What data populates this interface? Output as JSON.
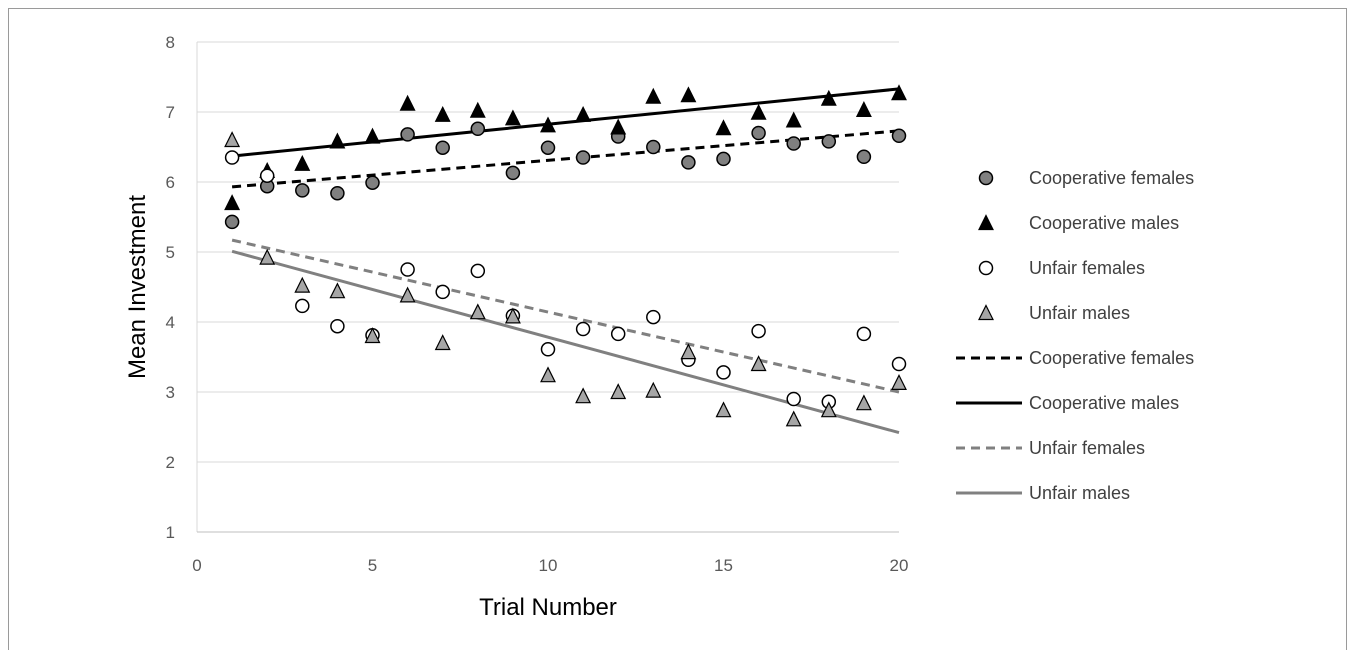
{
  "chart_data": {
    "type": "scatter",
    "title": "",
    "xlabel": "Trial Number",
    "ylabel": "Mean Investment",
    "xlim": [
      0,
      20
    ],
    "ylim": [
      1,
      8
    ],
    "x_ticks": [
      0,
      5,
      10,
      15,
      20
    ],
    "y_ticks": [
      1,
      2,
      3,
      4,
      5,
      6,
      7,
      8
    ],
    "grid": "horizontal",
    "legend_position": "right",
    "x": [
      1,
      2,
      3,
      4,
      5,
      6,
      7,
      8,
      9,
      10,
      11,
      12,
      13,
      14,
      15,
      16,
      17,
      18,
      19,
      20
    ],
    "series": [
      {
        "name": "Cooperative females",
        "marker": "circle",
        "fill": "#808080",
        "values": [
          5.43,
          5.94,
          5.88,
          5.84,
          5.99,
          6.68,
          6.49,
          6.76,
          6.13,
          6.49,
          6.35,
          6.65,
          6.5,
          6.28,
          6.33,
          6.7,
          6.55,
          6.58,
          6.36,
          6.66
        ]
      },
      {
        "name": "Cooperative males",
        "marker": "triangle",
        "fill": "#000000",
        "values": [
          5.7,
          6.16,
          6.26,
          6.58,
          6.65,
          7.12,
          6.96,
          7.02,
          6.91,
          6.81,
          6.96,
          6.78,
          7.22,
          7.24,
          6.77,
          6.99,
          6.88,
          7.19,
          7.03,
          7.27
        ]
      },
      {
        "name": "Unfair females",
        "marker": "circle",
        "fill": "#ffffff",
        "values": [
          6.35,
          6.09,
          4.23,
          3.94,
          3.81,
          4.75,
          4.43,
          4.73,
          4.09,
          3.61,
          3.9,
          3.83,
          4.07,
          3.46,
          3.28,
          3.87,
          2.9,
          2.86,
          3.83,
          3.4
        ]
      },
      {
        "name": "Unfair males",
        "marker": "triangle",
        "fill": "#a6a6a6",
        "values": [
          6.6,
          4.92,
          4.52,
          4.44,
          3.8,
          4.38,
          3.7,
          4.14,
          4.08,
          3.24,
          2.94,
          3.0,
          3.02,
          3.57,
          2.74,
          3.4,
          2.61,
          2.74,
          2.84,
          3.13
        ]
      }
    ],
    "trendlines": [
      {
        "name": "Cooperative females",
        "style": "dashed",
        "color": "#000000",
        "x": [
          1,
          20
        ],
        "y": [
          5.93,
          6.73
        ]
      },
      {
        "name": "Cooperative males",
        "style": "solid",
        "color": "#000000",
        "x": [
          1,
          20
        ],
        "y": [
          6.37,
          7.33
        ]
      },
      {
        "name": "Unfair females",
        "style": "dashed",
        "color": "#808080",
        "x": [
          1,
          20
        ],
        "y": [
          5.17,
          3.0
        ]
      },
      {
        "name": "Unfair males",
        "style": "solid",
        "color": "#808080",
        "x": [
          1,
          20
        ],
        "y": [
          5.01,
          2.42
        ]
      }
    ]
  }
}
